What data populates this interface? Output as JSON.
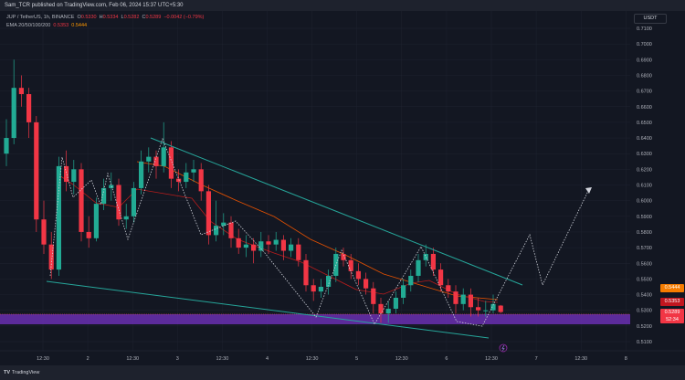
{
  "header": {
    "published": "Sam_TCR published on TradingView.com, Feb 06, 2024 15:37 UTC+5:30"
  },
  "legend": {
    "symbol": "JUP / TetherUS, 1h, BINANCE",
    "o_label": "O",
    "o": "0.5330",
    "h_label": "H",
    "h": "0.5334",
    "l_label": "L",
    "l": "0.5282",
    "c_label": "C",
    "c": "0.5289",
    "change": "−0.0042 (−0.79%)",
    "ema_label": "EMA 20/50/100/200",
    "ema1": "0.5353",
    "ema2": "0.5444"
  },
  "price_axis": {
    "unit": "USDT",
    "badge_ema2": "0.5444",
    "badge_ema1": "0.5353",
    "badge_last": "0.5289",
    "badge_countdown": "52:34"
  },
  "footer": {
    "logo": "TV",
    "brand": "TradingView"
  },
  "colors": {
    "up": "#22ab94",
    "down": "#f23645",
    "ema_orange": "#ff9800",
    "ema_red": "#f23645",
    "trendline": "#26a69a",
    "zone": "#6a2fb0",
    "bg": "#131722"
  },
  "chart_data": {
    "type": "candlestick",
    "ylim": [
      0.505,
      0.715
    ],
    "y_ticks": [
      "0.7100",
      "0.7000",
      "0.6900",
      "0.6800",
      "0.6700",
      "0.6600",
      "0.6500",
      "0.6400",
      "0.6300",
      "0.6200",
      "0.6100",
      "0.6000",
      "0.5900",
      "0.5800",
      "0.5700",
      "0.5600",
      "0.5500",
      "0.5400",
      "0.5300",
      "0.5200",
      "0.5100"
    ],
    "x_ticks": [
      "12:30",
      "2",
      "12:30",
      "3",
      "12:30",
      "4",
      "12:30",
      "5",
      "12:30",
      "6",
      "12:30",
      "7",
      "12:30",
      "8"
    ],
    "candles": [
      [
        0.63,
        0.652,
        0.622,
        0.64
      ],
      [
        0.64,
        0.69,
        0.636,
        0.672
      ],
      [
        0.672,
        0.68,
        0.66,
        0.668
      ],
      [
        0.668,
        0.672,
        0.64,
        0.65
      ],
      [
        0.65,
        0.654,
        0.58,
        0.588
      ],
      [
        0.588,
        0.6,
        0.566,
        0.572
      ],
      [
        0.572,
        0.58,
        0.55,
        0.556
      ],
      [
        0.556,
        0.628,
        0.552,
        0.622
      ],
      [
        0.622,
        0.632,
        0.606,
        0.612
      ],
      [
        0.612,
        0.626,
        0.604,
        0.62
      ],
      [
        0.62,
        0.624,
        0.574,
        0.58
      ],
      [
        0.58,
        0.59,
        0.57,
        0.576
      ],
      [
        0.576,
        0.602,
        0.574,
        0.598
      ],
      [
        0.598,
        0.614,
        0.594,
        0.608
      ],
      [
        0.608,
        0.618,
        0.6,
        0.61
      ],
      [
        0.61,
        0.614,
        0.584,
        0.588
      ],
      [
        0.588,
        0.598,
        0.582,
        0.59
      ],
      [
        0.59,
        0.612,
        0.586,
        0.608
      ],
      [
        0.608,
        0.632,
        0.604,
        0.625
      ],
      [
        0.625,
        0.634,
        0.618,
        0.628
      ],
      [
        0.628,
        0.632,
        0.614,
        0.622
      ],
      [
        0.622,
        0.65,
        0.618,
        0.634
      ],
      [
        0.634,
        0.638,
        0.608,
        0.614
      ],
      [
        0.614,
        0.62,
        0.606,
        0.612
      ],
      [
        0.612,
        0.624,
        0.608,
        0.618
      ],
      [
        0.618,
        0.626,
        0.612,
        0.62
      ],
      [
        0.62,
        0.624,
        0.6,
        0.606
      ],
      [
        0.606,
        0.61,
        0.572,
        0.578
      ],
      [
        0.578,
        0.6,
        0.574,
        0.584
      ],
      [
        0.584,
        0.592,
        0.578,
        0.586
      ],
      [
        0.586,
        0.59,
        0.57,
        0.576
      ],
      [
        0.576,
        0.582,
        0.566,
        0.57
      ],
      [
        0.57,
        0.578,
        0.564,
        0.572
      ],
      [
        0.572,
        0.576,
        0.56,
        0.568
      ],
      [
        0.568,
        0.58,
        0.564,
        0.574
      ],
      [
        0.574,
        0.578,
        0.566,
        0.572
      ],
      [
        0.572,
        0.58,
        0.568,
        0.575
      ],
      [
        0.575,
        0.578,
        0.562,
        0.568
      ],
      [
        0.568,
        0.576,
        0.564,
        0.572
      ],
      [
        0.572,
        0.576,
        0.558,
        0.562
      ],
      [
        0.562,
        0.566,
        0.542,
        0.546
      ],
      [
        0.546,
        0.55,
        0.536,
        0.542
      ],
      [
        0.542,
        0.55,
        0.538,
        0.545
      ],
      [
        0.545,
        0.556,
        0.54,
        0.552
      ],
      [
        0.552,
        0.57,
        0.548,
        0.566
      ],
      [
        0.566,
        0.57,
        0.558,
        0.562
      ],
      [
        0.562,
        0.566,
        0.55,
        0.555
      ],
      [
        0.555,
        0.56,
        0.546,
        0.55
      ],
      [
        0.55,
        0.554,
        0.54,
        0.544
      ],
      [
        0.544,
        0.548,
        0.528,
        0.534
      ],
      [
        0.534,
        0.538,
        0.522,
        0.528
      ],
      [
        0.528,
        0.536,
        0.522,
        0.531
      ],
      [
        0.531,
        0.542,
        0.528,
        0.538
      ],
      [
        0.538,
        0.55,
        0.534,
        0.546
      ],
      [
        0.546,
        0.556,
        0.542,
        0.552
      ],
      [
        0.552,
        0.566,
        0.548,
        0.562
      ],
      [
        0.562,
        0.572,
        0.558,
        0.566
      ],
      [
        0.566,
        0.57,
        0.552,
        0.556
      ],
      [
        0.556,
        0.56,
        0.542,
        0.546
      ],
      [
        0.546,
        0.55,
        0.538,
        0.542
      ],
      [
        0.542,
        0.546,
        0.528,
        0.534
      ],
      [
        0.534,
        0.544,
        0.53,
        0.54
      ],
      [
        0.54,
        0.544,
        0.526,
        0.532
      ],
      [
        0.532,
        0.538,
        0.526,
        0.53
      ],
      [
        0.53,
        0.536,
        0.526,
        0.53
      ],
      [
        0.53,
        0.54,
        0.528,
        0.534
      ],
      [
        0.533,
        0.5334,
        0.5282,
        0.5289
      ]
    ]
  }
}
